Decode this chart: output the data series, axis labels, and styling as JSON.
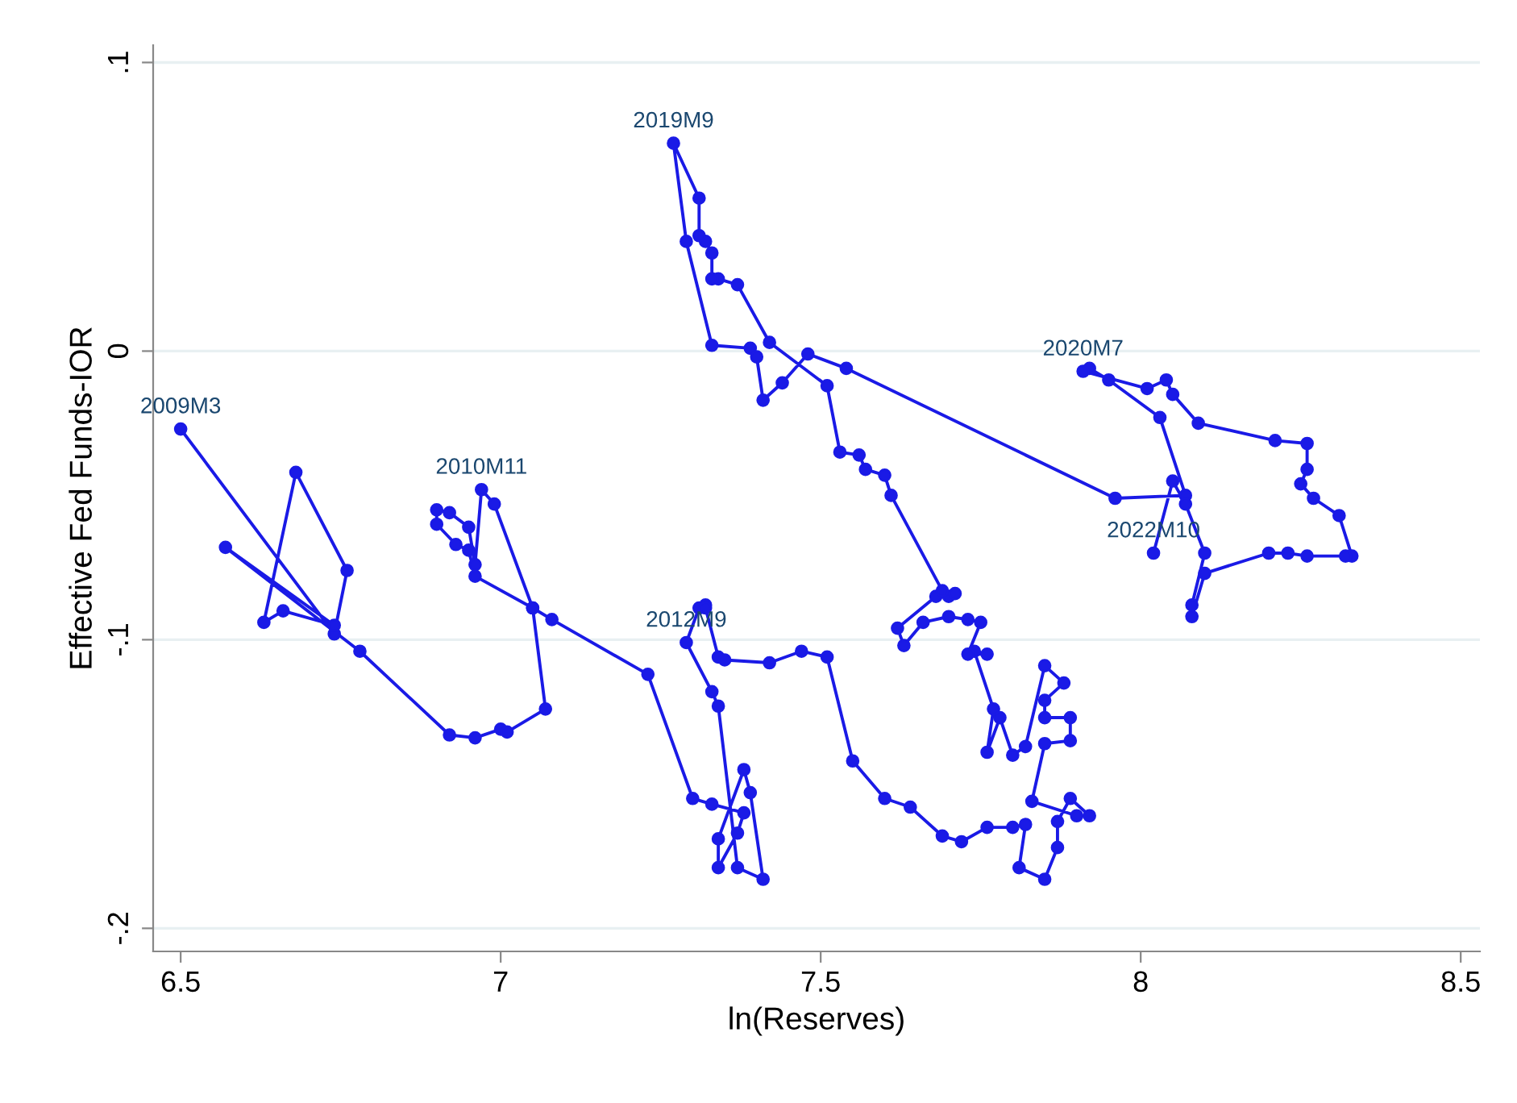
{
  "chart_data": {
    "type": "line",
    "xlabel": "ln(Reserves)",
    "ylabel": "Effective Fed Funds-IOR",
    "x": [
      6.5,
      6.74,
      6.76,
      6.68,
      6.63,
      6.66,
      6.74,
      6.57,
      6.78,
      6.92,
      6.96,
      7.0,
      7.01,
      7.07,
      7.05,
      6.99,
      6.97,
      6.96,
      6.95,
      6.92,
      6.9,
      6.9,
      6.93,
      6.95,
      6.96,
      7.05,
      7.08,
      7.23,
      7.3,
      7.33,
      7.38,
      7.37,
      7.34,
      7.34,
      7.38,
      7.39,
      7.41,
      7.37,
      7.34,
      7.33,
      7.29,
      7.31,
      7.32,
      7.32,
      7.34,
      7.35,
      7.42,
      7.47,
      7.51,
      7.55,
      7.6,
      7.64,
      7.69,
      7.72,
      7.76,
      7.8,
      7.82,
      7.81,
      7.85,
      7.87,
      7.87,
      7.89,
      7.92,
      7.9,
      7.83,
      7.85,
      7.89,
      7.89,
      7.85,
      7.85,
      7.88,
      7.85,
      7.82,
      7.8,
      7.78,
      7.76,
      7.77,
      7.74,
      7.76,
      7.73,
      7.75,
      7.73,
      7.7,
      7.66,
      7.63,
      7.62,
      7.68,
      7.7,
      7.71,
      7.69,
      7.61,
      7.6,
      7.57,
      7.56,
      7.53,
      7.51,
      7.42,
      7.37,
      7.34,
      7.33,
      7.33,
      7.32,
      7.31,
      7.31,
      7.27,
      7.29,
      7.33,
      7.39,
      7.4,
      7.41,
      7.44,
      7.48,
      7.54,
      7.96,
      8.07,
      8.03,
      7.95,
      7.92,
      7.91,
      8.01,
      8.04,
      8.05,
      8.09,
      8.21,
      8.26,
      8.26,
      8.25,
      8.27,
      8.31,
      8.33,
      8.32,
      8.26,
      8.23,
      8.2,
      8.1,
      8.08,
      8.08,
      8.1,
      8.07,
      8.05,
      8.02
    ],
    "series": [
      {
        "color": "#1a1ae6",
        "values": [
          -0.027,
          -0.098,
          -0.076,
          -0.042,
          -0.094,
          -0.09,
          -0.095,
          -0.068,
          -0.104,
          -0.133,
          -0.134,
          -0.131,
          -0.132,
          -0.124,
          -0.089,
          -0.053,
          -0.048,
          -0.074,
          -0.061,
          -0.056,
          -0.055,
          -0.06,
          -0.067,
          -0.069,
          -0.078,
          -0.089,
          -0.093,
          -0.112,
          -0.155,
          -0.157,
          -0.16,
          -0.167,
          -0.179,
          -0.169,
          -0.145,
          -0.153,
          -0.183,
          -0.179,
          -0.123,
          -0.118,
          -0.101,
          -0.089,
          -0.088,
          -0.089,
          -0.106,
          -0.107,
          -0.108,
          -0.104,
          -0.106,
          -0.142,
          -0.155,
          -0.158,
          -0.168,
          -0.17,
          -0.165,
          -0.165,
          -0.164,
          -0.179,
          -0.183,
          -0.172,
          -0.163,
          -0.155,
          -0.161,
          -0.161,
          -0.156,
          -0.136,
          -0.135,
          -0.127,
          -0.127,
          -0.121,
          -0.115,
          -0.109,
          -0.137,
          -0.14,
          -0.127,
          -0.139,
          -0.124,
          -0.104,
          -0.105,
          -0.105,
          -0.094,
          -0.093,
          -0.092,
          -0.094,
          -0.102,
          -0.096,
          -0.085,
          -0.085,
          -0.084,
          -0.083,
          -0.05,
          -0.043,
          -0.041,
          -0.036,
          -0.035,
          -0.012,
          0.003,
          0.023,
          0.025,
          0.025,
          0.034,
          0.038,
          0.04,
          0.053,
          0.072,
          0.038,
          0.002,
          0.001,
          -0.002,
          -0.017,
          -0.011,
          -0.001,
          -0.006,
          -0.051,
          -0.05,
          -0.023,
          -0.01,
          -0.006,
          -0.007,
          -0.013,
          -0.01,
          -0.015,
          -0.025,
          -0.031,
          -0.032,
          -0.041,
          -0.046,
          -0.051,
          -0.057,
          -0.071,
          -0.071,
          -0.071,
          -0.07,
          -0.07,
          -0.077,
          -0.092,
          -0.088,
          -0.07,
          -0.053,
          -0.045,
          -0.07
        ]
      }
    ],
    "marker": "circle",
    "line_style": "solid",
    "grid": "y",
    "xlim": [
      6.457,
      8.53
    ],
    "ylim": [
      -0.208,
      0.106
    ],
    "xticks": [
      6.5,
      7,
      7.5,
      8,
      8.5
    ],
    "yticks": [
      {
        "value": 0.1,
        "label": ".1"
      },
      {
        "value": 0,
        "label": "0"
      },
      {
        "value": -0.1,
        "label": "-.1"
      },
      {
        "value": -0.2,
        "label": "-.2"
      }
    ],
    "annotations": [
      {
        "text": "2009M3",
        "x": 6.5,
        "y": -0.027
      },
      {
        "text": "2010M11",
        "x": 6.97,
        "y": -0.048
      },
      {
        "text": "2012M9",
        "x": 7.29,
        "y": -0.101
      },
      {
        "text": "2019M9",
        "x": 7.27,
        "y": 0.072
      },
      {
        "text": "2020M7",
        "x": 7.91,
        "y": -0.007
      },
      {
        "text": "2022M10",
        "x": 8.02,
        "y": -0.07
      }
    ]
  }
}
